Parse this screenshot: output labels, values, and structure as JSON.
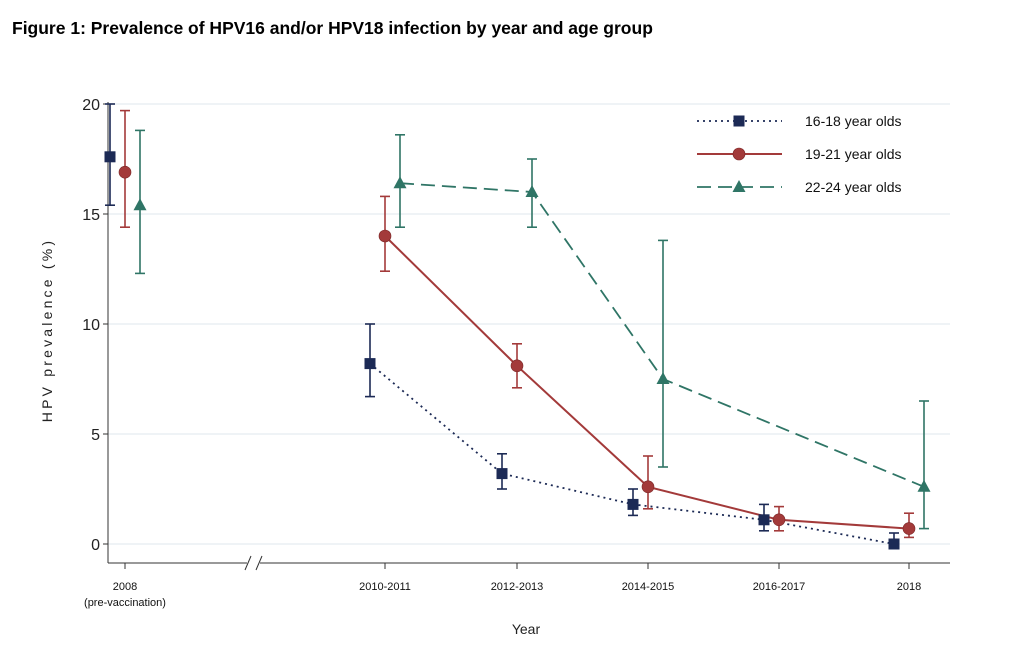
{
  "title": "Figure 1: Prevalence of HPV16 and/or HPV18 infection by year and age group",
  "chart_data": {
    "type": "line",
    "xlabel": "Year",
    "ylabel": "HPV prevalence (%)",
    "ylim": [
      0,
      20
    ],
    "yticks": [
      "0",
      "5",
      "10",
      "15",
      "20"
    ],
    "categories": [
      "2008",
      "2010-2011",
      "2012-2013",
      "2014-2015",
      "2016-2017",
      "2018"
    ],
    "category_sublabels": [
      "(pre-vaccination)",
      "",
      "",
      "",
      "",
      ""
    ],
    "axis_break_after_first_category": true,
    "grid": "horizontal",
    "legend_position": "top-right",
    "series": [
      {
        "name": "16-18 year olds",
        "color": "#1c2a55",
        "line_style": "dotted",
        "marker": "square",
        "values": [
          17.6,
          8.2,
          3.2,
          1.8,
          1.1,
          0.0
        ],
        "ci_low": [
          15.4,
          6.7,
          2.5,
          1.3,
          0.6,
          0.0
        ],
        "ci_high": [
          20.0,
          10.0,
          4.1,
          2.5,
          1.8,
          0.5
        ]
      },
      {
        "name": "19-21 year olds",
        "color": "#a33a3a",
        "line_style": "solid",
        "marker": "circle",
        "values": [
          16.9,
          14.0,
          8.1,
          2.6,
          1.1,
          0.7
        ],
        "ci_low": [
          14.4,
          12.4,
          7.1,
          1.6,
          0.6,
          0.3
        ],
        "ci_high": [
          19.7,
          15.8,
          9.1,
          4.0,
          1.7,
          1.4
        ]
      },
      {
        "name": "22-24 year olds",
        "color": "#2f7566",
        "line_style": "dashed",
        "marker": "triangle",
        "values": [
          15.4,
          16.4,
          16.0,
          7.5,
          null,
          2.6
        ],
        "ci_low": [
          12.3,
          14.4,
          14.4,
          3.5,
          null,
          0.7
        ],
        "ci_high": [
          18.8,
          18.6,
          17.5,
          13.8,
          null,
          6.5
        ]
      }
    ]
  }
}
